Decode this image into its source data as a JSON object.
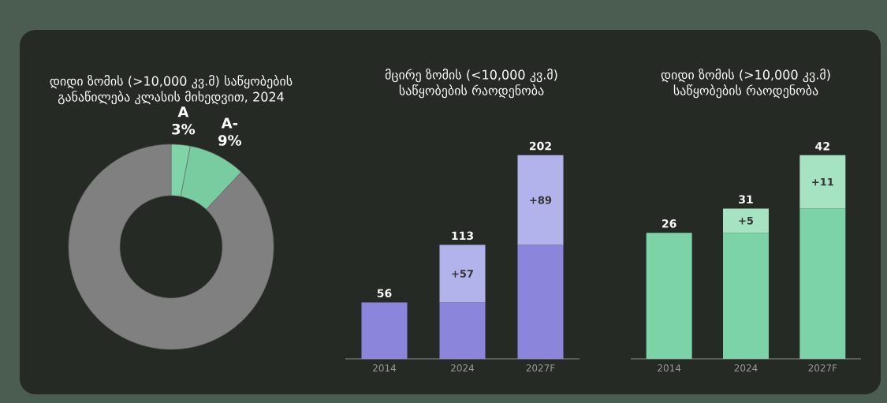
{
  "chart_data": [
    {
      "type": "donut",
      "title": "დიდი ზომის (>10,000 კვ.მ) საწყობების განაწილება კლასის მიხედვით, 2024",
      "categories": [
        "A",
        "A-",
        null
      ],
      "values": [
        3,
        9,
        88
      ],
      "value_labels": [
        "3%",
        "9%",
        null
      ],
      "colors": [
        "#7fd4a8",
        "#79cc9f",
        "#808080"
      ]
    },
    {
      "type": "bar",
      "title": "მცირე ზომის (<10,000 კვ.მ) საწყობების რაოდენობა",
      "categories": [
        "2014",
        "2024",
        "2027F"
      ],
      "stacked": true,
      "totals": [
        "56",
        "113",
        "202"
      ],
      "series": [
        {
          "color": "#8b85dc",
          "values": [
            56,
            56,
            113
          ]
        },
        {
          "color": "#b2b3ea",
          "values": [
            null,
            57,
            89
          ],
          "value_labels": [
            null,
            "+57",
            "+89"
          ]
        }
      ]
    },
    {
      "type": "bar",
      "title": "დიდი ზომის (>10,000 კვ.მ) საწყობების რაოდენობა",
      "categories": [
        "2014",
        "2024",
        "2027F"
      ],
      "stacked": true,
      "totals": [
        "26",
        "31",
        "42"
      ],
      "series": [
        {
          "color": "#7dd3a8",
          "values": [
            26,
            26,
            31
          ]
        },
        {
          "color": "#a6e3c3",
          "values": [
            null,
            5,
            11
          ],
          "value_labels": [
            null,
            "+5",
            "+11"
          ]
        }
      ]
    }
  ]
}
